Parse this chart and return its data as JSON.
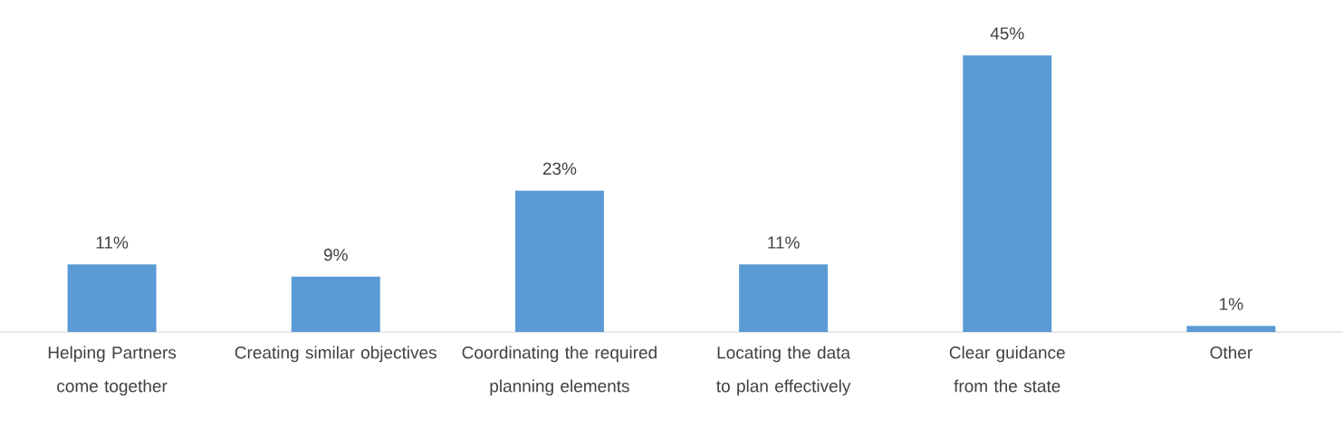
{
  "chart_data": {
    "type": "bar",
    "categories": [
      "Helping Partners come together",
      "Creating similar objectives",
      "Coordinating the required planning elements",
      "Locating the data to plan effectively",
      "Clear guidance from the state",
      "Other"
    ],
    "values": [
      11,
      9,
      23,
      11,
      45,
      1
    ],
    "value_labels": [
      "11%",
      "9%",
      "23%",
      "11%",
      "45%",
      "1%"
    ],
    "color": "#5b9bd5"
  }
}
